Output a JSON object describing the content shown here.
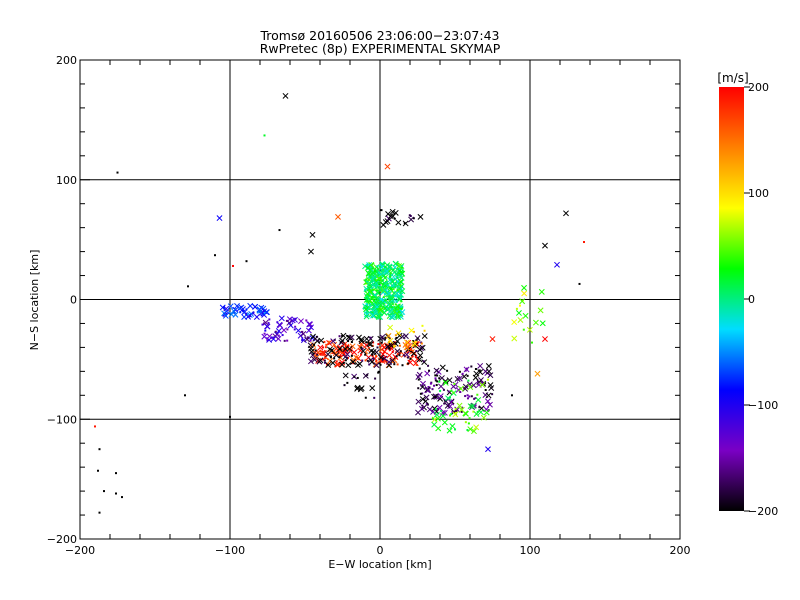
{
  "chart_data": {
    "type": "scatter",
    "title": "Tromsø 20160506 23:06:00−23:07:43",
    "subtitle": "RwPretec (8p) EXPERIMENTAL SKYMAP",
    "xlabel": "E−W location [km]",
    "ylabel": "N−S location [km]",
    "xlim": [
      -200,
      200
    ],
    "ylim": [
      -200,
      200
    ],
    "xticks": [
      -200,
      -100,
      0,
      100,
      200
    ],
    "yticks": [
      -200,
      -100,
      0,
      100,
      200
    ],
    "xtick_labels": [
      "−200",
      "−100",
      "0",
      "100",
      "200"
    ],
    "ytick_labels": [
      "−200",
      "−100",
      "0",
      "100",
      "200"
    ],
    "grid": "gridlines at -100, 0 and 100 on both axes",
    "colorbar": {
      "label": "[m/s]",
      "range": [
        -200,
        200
      ],
      "ticks": [
        200,
        100,
        0,
        -100,
        -200
      ],
      "tick_labels": [
        "200",
        "100",
        "0",
        "−100",
        "−200"
      ],
      "colors": [
        "#000000",
        "#7a00c4",
        "#0000ff",
        "#00ddff",
        "#00ff00",
        "#ffff00",
        "#ff8000",
        "#ff0000"
      ]
    },
    "markers": [
      "x (crosses)",
      "dots"
    ],
    "clusters": [
      {
        "x": [
          -10,
          15
        ],
        "y": [
          -15,
          30
        ],
        "velocity": 10,
        "density": "very dense"
      },
      {
        "x": [
          -105,
          -75
        ],
        "y": [
          -15,
          -5
        ],
        "velocity": -80,
        "density": "medium"
      },
      {
        "x": [
          -80,
          -45
        ],
        "y": [
          -35,
          -15
        ],
        "velocity": -130,
        "density": "medium"
      },
      {
        "x": [
          -45,
          25
        ],
        "y": [
          -55,
          -35
        ],
        "velocity": 185,
        "density": "dense"
      },
      {
        "x": [
          -50,
          30
        ],
        "y": [
          -55,
          -30
        ],
        "velocity": -200,
        "density": "dense"
      },
      {
        "x": [
          25,
          75
        ],
        "y": [
          -95,
          -55
        ],
        "velocity": -180,
        "density": "dense"
      },
      {
        "x": [
          35,
          75
        ],
        "y": [
          -110,
          -65
        ],
        "velocity": 40,
        "density": "medium"
      },
      {
        "x": [
          5,
          30
        ],
        "y": [
          -40,
          -20
        ],
        "velocity": 110,
        "density": "sparse"
      },
      {
        "x": [
          0,
          25
        ],
        "y": [
          62,
          75
        ],
        "velocity": -200,
        "density": "sparse"
      },
      {
        "x": [
          85,
          115
        ],
        "y": [
          -40,
          15
        ],
        "velocity": 60,
        "density": "sparse"
      },
      {
        "x": [
          -25,
          0
        ],
        "y": [
          -85,
          -60
        ],
        "velocity": -200,
        "density": "sparse"
      }
    ],
    "outliers": [
      {
        "x": -63,
        "y": 170,
        "velocity": -200,
        "marker": "x"
      },
      {
        "x": 5,
        "y": 111,
        "velocity": 170,
        "marker": "x"
      },
      {
        "x": -77,
        "y": 137,
        "velocity": 20,
        "marker": "dot"
      },
      {
        "x": -175,
        "y": 106,
        "velocity": -200,
        "marker": "dot"
      },
      {
        "x": -107,
        "y": 68,
        "velocity": -90,
        "marker": "x"
      },
      {
        "x": -28,
        "y": 69,
        "velocity": 160,
        "marker": "x"
      },
      {
        "x": 27,
        "y": 69,
        "velocity": -200,
        "marker": "x"
      },
      {
        "x": 124,
        "y": 72,
        "velocity": -200,
        "marker": "x"
      },
      {
        "x": 110,
        "y": 45,
        "velocity": -200,
        "marker": "x"
      },
      {
        "x": 118,
        "y": 29,
        "velocity": -100,
        "marker": "x"
      },
      {
        "x": 136,
        "y": 48,
        "velocity": 190,
        "marker": "dot"
      },
      {
        "x": 133,
        "y": 13,
        "velocity": -200,
        "marker": "dot"
      },
      {
        "x": -45,
        "y": 54,
        "velocity": -200,
        "marker": "x"
      },
      {
        "x": -128,
        "y": 11,
        "velocity": -200,
        "marker": "dot"
      },
      {
        "x": -110,
        "y": 37,
        "velocity": -200,
        "marker": "dot"
      },
      {
        "x": -190,
        "y": -106,
        "velocity": 190,
        "marker": "dot"
      },
      {
        "x": -187,
        "y": -125,
        "velocity": -200,
        "marker": "dot"
      },
      {
        "x": -188,
        "y": -143,
        "velocity": -200,
        "marker": "dot"
      },
      {
        "x": -184,
        "y": -160,
        "velocity": -200,
        "marker": "dot"
      },
      {
        "x": -176,
        "y": -145,
        "velocity": -200,
        "marker": "dot"
      },
      {
        "x": -176,
        "y": -162,
        "velocity": -200,
        "marker": "dot"
      },
      {
        "x": -172,
        "y": -165,
        "velocity": -200,
        "marker": "dot"
      },
      {
        "x": -187,
        "y": -178,
        "velocity": -200,
        "marker": "dot"
      },
      {
        "x": 72,
        "y": -125,
        "velocity": -100,
        "marker": "x"
      },
      {
        "x": 105,
        "y": -62,
        "velocity": 130,
        "marker": "x"
      },
      {
        "x": 110,
        "y": -33,
        "velocity": 200,
        "marker": "x"
      },
      {
        "x": 75,
        "y": -33,
        "velocity": 190,
        "marker": "x"
      },
      {
        "x": 88,
        "y": -80,
        "velocity": -200,
        "marker": "dot"
      },
      {
        "x": -100,
        "y": -98,
        "velocity": -200,
        "marker": "dot"
      },
      {
        "x": -67,
        "y": 58,
        "velocity": -200,
        "marker": "dot"
      },
      {
        "x": -46,
        "y": 40,
        "velocity": -200,
        "marker": "x"
      },
      {
        "x": -89,
        "y": 32,
        "velocity": -200,
        "marker": "dot"
      },
      {
        "x": -98,
        "y": 28,
        "velocity": 200,
        "marker": "dot"
      },
      {
        "x": -130,
        "y": -80,
        "velocity": -200,
        "marker": "dot"
      }
    ]
  }
}
